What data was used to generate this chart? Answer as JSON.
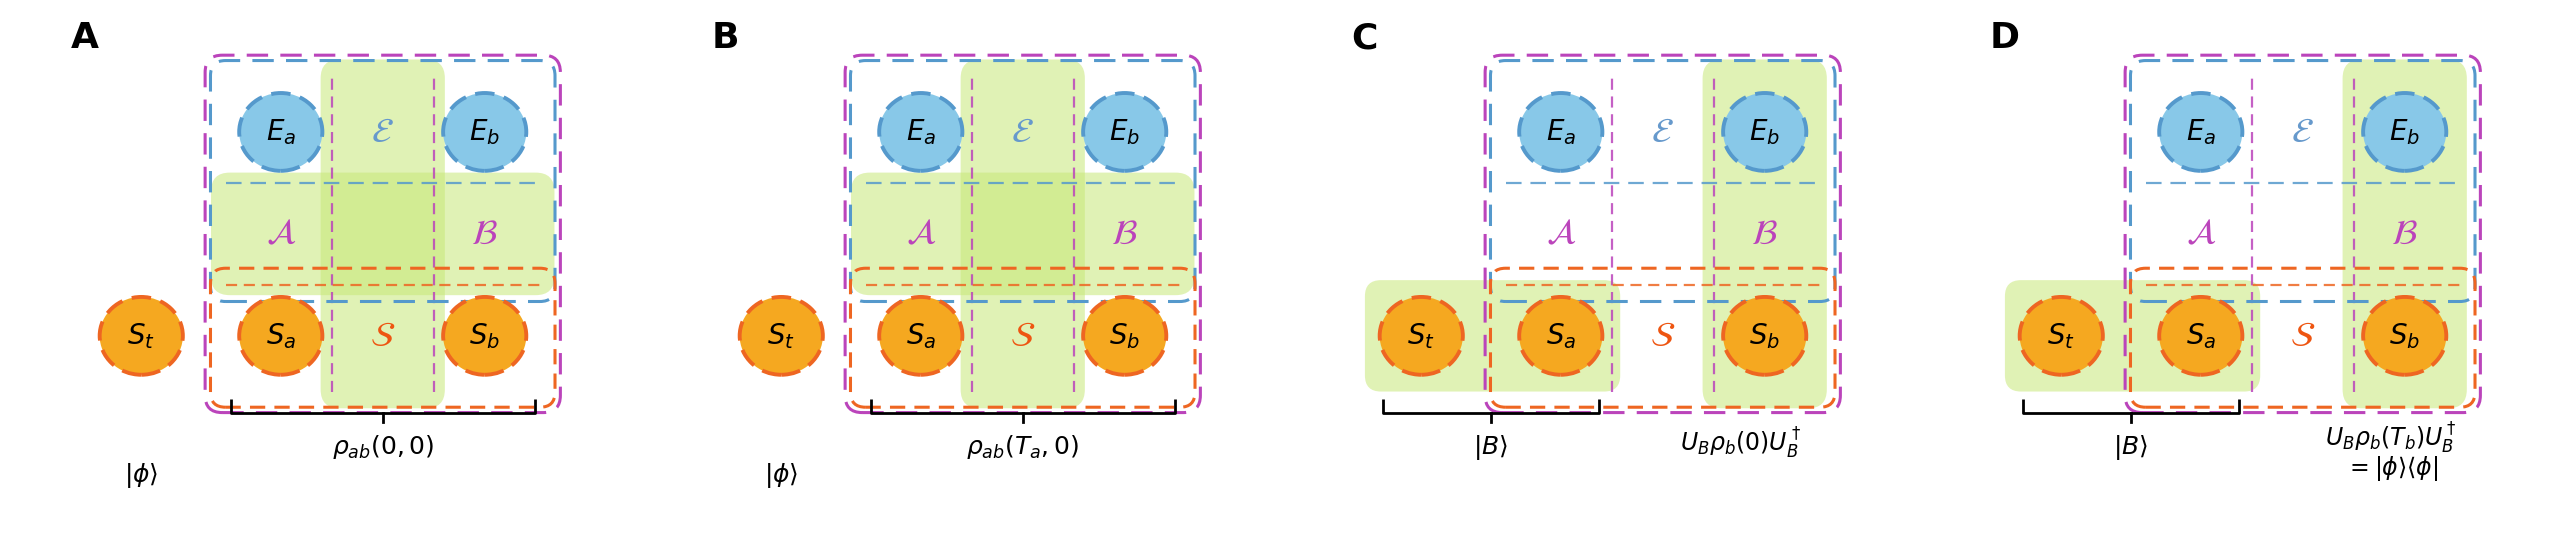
{
  "panels": [
    "A",
    "B",
    "C",
    "D"
  ],
  "orange_color": "#F5A820",
  "orange_dash": "#EE6622",
  "blue_circle_color": "#88C8E8",
  "blue_dash": "#5599CC",
  "green_fill": "#C8E878",
  "purple_dash": "#BB44BB",
  "bg_color": "#FFFFFF",
  "panel_border": "#333333",
  "blue_text": "#6699CC",
  "purple_text": "#BB44BB",
  "orange_text": "#EE5511",
  "black": "#111111",
  "sym_fs": 19,
  "label_fs": 26,
  "formula_fs": 17
}
